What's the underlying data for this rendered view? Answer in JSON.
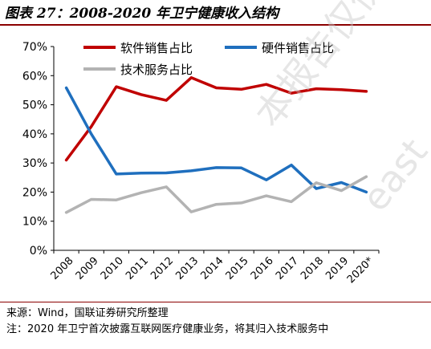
{
  "header": {
    "title": "图表 27：2008-2020 年卫宁健康收入结构"
  },
  "footer": {
    "source": "来源：Wind，国联证券研究所整理",
    "note": "注：2020 年卫宁首次披露互联网医疗健康业务，将其归入技术服务中"
  },
  "watermark": {
    "line1": "本报告仅供",
    "line2": "east"
  },
  "chart_data": {
    "type": "line",
    "x": [
      "2008",
      "2009",
      "2010",
      "2011",
      "2012",
      "2013",
      "2014",
      "2015",
      "2016",
      "2017",
      "2018",
      "2019",
      "2020*"
    ],
    "ylim": [
      0,
      70
    ],
    "yticks": [
      "0%",
      "10%",
      "20%",
      "30%",
      "40%",
      "50%",
      "60%",
      "70%"
    ],
    "grid": false,
    "legend_position": "top",
    "series": [
      {
        "name": "软件销售占比",
        "color": "#c00000",
        "values": [
          31.0,
          42.5,
          56.2,
          53.5,
          51.5,
          59.3,
          55.8,
          55.3,
          57.0,
          54.0,
          55.5,
          55.2,
          54.6
        ]
      },
      {
        "name": "硬件销售占比",
        "color": "#1f6fbe",
        "values": [
          55.8,
          40.0,
          26.2,
          26.5,
          26.6,
          27.3,
          28.4,
          28.3,
          24.2,
          29.3,
          21.2,
          23.3,
          20.0
        ]
      },
      {
        "name": "技术服务占比",
        "color": "#b3b3b3",
        "values": [
          13.0,
          17.5,
          17.3,
          19.8,
          21.8,
          13.2,
          15.8,
          16.3,
          18.7,
          16.7,
          23.2,
          20.5,
          25.3
        ]
      }
    ]
  }
}
